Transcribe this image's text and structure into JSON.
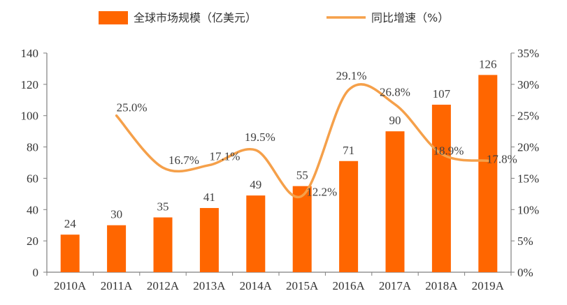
{
  "chart_data": {
    "type": "bar+line",
    "categories": [
      "2010A",
      "2011A",
      "2012A",
      "2013A",
      "2014A",
      "2015A",
      "2016A",
      "2017A",
      "2018A",
      "2019A"
    ],
    "series": [
      {
        "name": "全球市场规模（亿美元）",
        "type": "bar",
        "axis": "left",
        "values": [
          24,
          30,
          35,
          41,
          49,
          55,
          71,
          90,
          107,
          126
        ],
        "labels": [
          "24",
          "30",
          "35",
          "41",
          "49",
          "55",
          "71",
          "90",
          "107",
          "126"
        ]
      },
      {
        "name": "同比增速（%）",
        "type": "line",
        "axis": "right",
        "values": [
          null,
          25.0,
          16.7,
          17.1,
          19.5,
          12.2,
          29.1,
          26.8,
          18.9,
          17.8
        ],
        "labels": [
          "",
          "25.0%",
          "16.7%",
          "17.1%",
          "19.5%",
          "12.2%",
          "29.1%",
          "26.8%",
          "18.9%",
          "17.8%"
        ]
      }
    ],
    "y_left": {
      "min": 0,
      "max": 140,
      "ticks": [
        "0",
        "20",
        "40",
        "60",
        "80",
        "100",
        "120",
        "140"
      ]
    },
    "y_right": {
      "min": 0,
      "max": 35,
      "ticks": [
        "0%",
        "5%",
        "10%",
        "15%",
        "20%",
        "25%",
        "30%",
        "35%"
      ]
    },
    "legend_position": "top",
    "grid": false,
    "colors": {
      "bar": "#FF6600",
      "line": "#F5A04A",
      "axis": "#7F7F7F"
    }
  }
}
